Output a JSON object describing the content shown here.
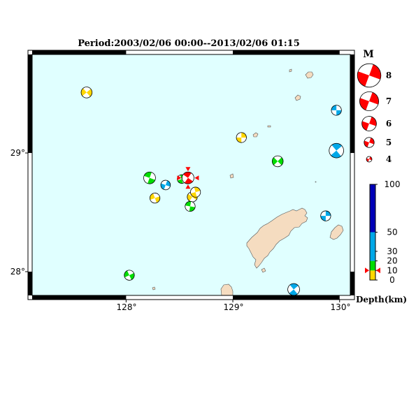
{
  "title": "Period:2003/02/06 00:00--2013/02/06 01:15",
  "lon_ticks": [
    "128°",
    "129°",
    "130°"
  ],
  "lat_ticks": [
    "29°",
    "28°"
  ],
  "magnitude_legend": {
    "header": "M",
    "items": [
      {
        "label": "8",
        "mag": 8
      },
      {
        "label": "7",
        "mag": 7
      },
      {
        "label": "6",
        "mag": 6
      },
      {
        "label": "5",
        "mag": 5
      },
      {
        "label": "4",
        "mag": 4
      }
    ]
  },
  "depth_legend": {
    "unit_label": "Depth(km)",
    "ticks": [
      "100",
      "50",
      "30",
      "20",
      "10",
      "0"
    ],
    "bands": [
      {
        "from": 0,
        "to": 10,
        "color": "#ffd700"
      },
      {
        "from": 10,
        "to": 20,
        "color": "#00dd00"
      },
      {
        "from": 20,
        "to": 50,
        "color": "#00a8e8"
      },
      {
        "from": 50,
        "to": 100,
        "color": "#0000b8"
      }
    ],
    "marker_depth": 10
  },
  "colors": {
    "sea": "#e0ffff",
    "land": "#f5dcc0",
    "shallow": "#ffd700",
    "mid": "#00dd00",
    "deep": "#00a8e8",
    "very_deep": "#0000b8",
    "highlight": "#ff0000"
  },
  "events": [
    {
      "lon": 127.63,
      "lat": 29.51,
      "depth_class": "shallow",
      "mag": 5.2
    },
    {
      "lon": 129.08,
      "lat": 29.13,
      "depth_class": "shallow",
      "mag": 5.0
    },
    {
      "lon": 129.97,
      "lat": 29.36,
      "depth_class": "deep",
      "mag": 5.0
    },
    {
      "lon": 129.97,
      "lat": 29.02,
      "depth_class": "deep",
      "mag": 6.0
    },
    {
      "lon": 129.42,
      "lat": 28.93,
      "depth_class": "mid",
      "mag": 5.2
    },
    {
      "lon": 128.22,
      "lat": 28.79,
      "depth_class": "mid",
      "mag": 5.4
    },
    {
      "lon": 128.37,
      "lat": 28.73,
      "depth_class": "deep",
      "mag": 4.9
    },
    {
      "lon": 128.27,
      "lat": 28.62,
      "depth_class": "shallow",
      "mag": 5.0
    },
    {
      "lon": 128.52,
      "lat": 28.78,
      "depth_class": "mid",
      "mag": 4.7
    },
    {
      "lon": 128.58,
      "lat": 28.79,
      "depth_class": "highlight",
      "mag": 5.4
    },
    {
      "lon": 128.62,
      "lat": 28.63,
      "depth_class": "shallow",
      "mag": 5.0
    },
    {
      "lon": 128.65,
      "lat": 28.67,
      "depth_class": "shallow",
      "mag": 5.0
    },
    {
      "lon": 128.6,
      "lat": 28.55,
      "depth_class": "mid",
      "mag": 5.0
    },
    {
      "lon": 129.87,
      "lat": 28.47,
      "depth_class": "deep",
      "mag": 5.0
    },
    {
      "lon": 128.03,
      "lat": 27.97,
      "depth_class": "mid",
      "mag": 5.0
    },
    {
      "lon": 129.57,
      "lat": 27.85,
      "depth_class": "deep",
      "mag": 5.4
    }
  ]
}
